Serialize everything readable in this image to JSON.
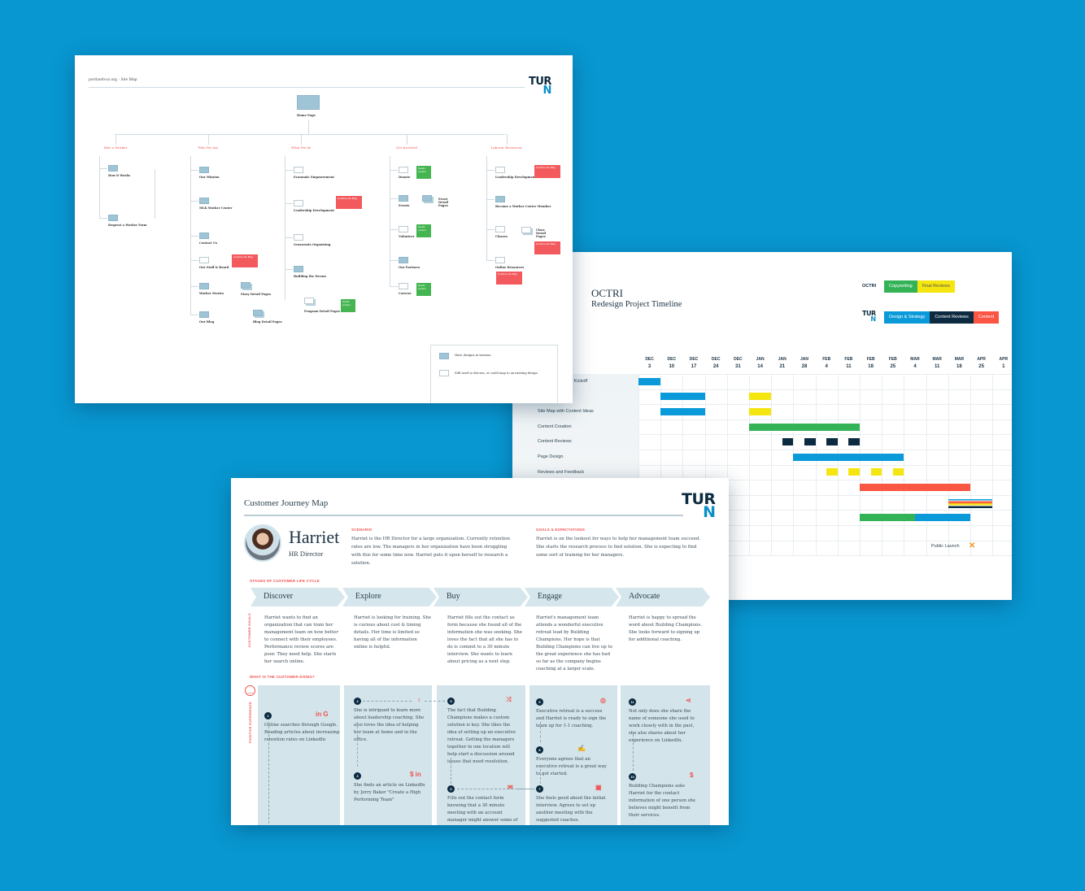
{
  "colors": {
    "background": "#0897d1",
    "blue": "#0a9ad9",
    "navy": "#0c2b40",
    "green": "#34b356",
    "yellow": "#f5e60f",
    "red": "#fb5544",
    "orange": "#f7941d"
  },
  "logo": {
    "top": "TUR",
    "bottom": "N"
  },
  "sitemap": {
    "breadcrumb": "portlandvoz.org  ·  Site Map",
    "home": "Home Page",
    "sections": [
      {
        "title": "Hire a Worker",
        "items": [
          "How it Works",
          "Request a Worker Form"
        ]
      },
      {
        "title": "Who We Are",
        "items": [
          "Our Mission",
          "MLK Worker Center",
          "Contact Us",
          "Our Staff & Board",
          "Worker Stories",
          "Our Blog"
        ]
      },
      {
        "title": "What We do",
        "items": [
          "Economic Empowerment",
          "Leadership Development",
          "Grassroots Organizing",
          "Building the Dream"
        ]
      },
      {
        "title": "Get Involved",
        "items": [
          "Donate",
          "Events",
          "Volunteer",
          "Our Partners",
          "Careers"
        ]
      },
      {
        "title": "Laborer Resources",
        "items": [
          "Leadership Development",
          "Become a Worker Center Member",
          "Classes",
          "Online Resources"
        ]
      }
    ],
    "detail_pages": [
      "Story Detail Pages",
      "Blog Detail Pages",
      "Program Detail Pages",
      "Event Detail Pages",
      "Class Detail Pages"
    ],
    "red_note": "Could be the Blog",
    "green_note": "Needs content",
    "legend": [
      "Have designs in Invision",
      "Still need to discuss, or could map to an existing design"
    ]
  },
  "timeline": {
    "title": "OCTRI",
    "subtitle": "Redesign Project Timeline",
    "legend_octri_label": "OCTRI",
    "legend_octri": [
      {
        "label": "Copywriting",
        "color": "#34b356"
      },
      {
        "label": "Final Reviews",
        "color": "#f5e60f"
      }
    ],
    "legend_turn": [
      {
        "label": "Design & Strategy",
        "color": "#0a9ad9"
      },
      {
        "label": "Content Reviews",
        "color": "#0c2b40"
      },
      {
        "label": "Content",
        "color": "#fb5544"
      }
    ],
    "dates": [
      [
        "DEC",
        "3"
      ],
      [
        "DEC",
        "10"
      ],
      [
        "DEC",
        "17"
      ],
      [
        "DEC",
        "24"
      ],
      [
        "DEC",
        "31"
      ],
      [
        "JAN",
        "14"
      ],
      [
        "JAN",
        "21"
      ],
      [
        "JAN",
        "28"
      ],
      [
        "FEB",
        "4"
      ],
      [
        "FEB",
        "11"
      ],
      [
        "FEB",
        "18"
      ],
      [
        "FEB",
        "25"
      ],
      [
        "MAR",
        "4"
      ],
      [
        "MAR",
        "11"
      ],
      [
        "MAR",
        "18"
      ],
      [
        "APR",
        "25"
      ],
      [
        "APR",
        "1"
      ]
    ],
    "rows": [
      {
        "label": "s/ Kickoff",
        "tasks": [
          {
            "start": 0,
            "end": 1,
            "color": "#0a9ad9"
          }
        ]
      },
      {
        "label": "",
        "tasks": [
          {
            "start": 1,
            "end": 3,
            "color": "#0a9ad9"
          },
          {
            "start": 5,
            "end": 6,
            "color": "#f5e60f"
          }
        ]
      },
      {
        "label": "Site Map with Content Ideas",
        "tasks": [
          {
            "start": 1,
            "end": 3,
            "color": "#0a9ad9"
          },
          {
            "start": 5,
            "end": 6,
            "color": "#f5e60f"
          }
        ]
      },
      {
        "label": "Content Creation",
        "tasks": [
          {
            "start": 5,
            "end": 10,
            "color": "#34b356"
          }
        ]
      },
      {
        "label": "Content Reviews",
        "tasks": [
          {
            "start": 6.5,
            "end": 7,
            "color": "#0c2b40"
          },
          {
            "start": 7.5,
            "end": 8,
            "color": "#0c2b40"
          },
          {
            "start": 8.5,
            "end": 9,
            "color": "#0c2b40"
          },
          {
            "start": 9.5,
            "end": 10,
            "color": "#0c2b40"
          }
        ]
      },
      {
        "label": "Page Design",
        "tasks": [
          {
            "start": 7,
            "end": 12,
            "color": "#0a9ad9"
          }
        ]
      },
      {
        "label": "Reviews and Feedback",
        "tasks": [
          {
            "start": 8.5,
            "end": 9,
            "color": "#f5e60f"
          },
          {
            "start": 9.5,
            "end": 10,
            "color": "#f5e60f"
          },
          {
            "start": 10.5,
            "end": 11,
            "color": "#f5e60f"
          },
          {
            "start": 11.5,
            "end": 12,
            "color": "#f5e60f"
          }
        ]
      },
      {
        "label": "",
        "tasks": [
          {
            "start": 10,
            "end": 15,
            "color": "#fb5544"
          }
        ]
      },
      {
        "label": "",
        "tasks": [
          {
            "start": 14,
            "end": 16,
            "color": "stripes"
          }
        ]
      },
      {
        "label": "",
        "tasks": [
          {
            "start": 10,
            "end": 12.5,
            "color": "#34b356"
          },
          {
            "start": 12.5,
            "end": 15,
            "color": "#0a9ad9"
          }
        ]
      }
    ],
    "milestone": {
      "label": "Public Launch",
      "week": 15
    }
  },
  "journey": {
    "title": "Customer Journey Map",
    "persona": {
      "name": "Harriet",
      "role": "HR Director"
    },
    "scenario_label": "SCENARIO",
    "scenario": "Harriet is the HR Director for a large organization. Currently retention rates are low. The managers in her organization have been struggling with this for some time now. Harriet puts it upon herself to research a solution.",
    "goals_label": "GOALS & EXPECTATIONS",
    "goals": "Harriet is on the lookout for ways to help her management team succeed. She starts the research process to find solution. She is expecting to find some sort of training for her managers.",
    "stages_label": "STAGES OF CUSTOMER LIFE CYCLE",
    "stages": [
      "Discover",
      "Explore",
      "Buy",
      "Engage",
      "Advocate"
    ],
    "customer_goals_label": "CUSTOMER GOALS",
    "customer_goals": [
      "Harriet wants to find an organization that can train her management team on how better to connect with their employees. Performance review scores are poor. They need help. She starts her search online.",
      "Harriet is looking for training. She is curious about cost & timing details. Her time is limited so having all of the information online is helpful.",
      "Harriet fills out the contact us form because she found all of the information she was seeking. She loves the fact that all she has to do is commit to a 30 minute interview. She wants to learn about pricing as a next step.",
      "Harriet's management team attends a wonderful executive retreat lead by Building Champions. Her hope is that Building Champions can live up to the great experience she has had so far as the company begins coaching at a larger scale.",
      "Harriet is happy to spread the word about Building Champions. She looks forward to signing up for additional coaching."
    ],
    "doing_label": "WHAT IS THE CUSTOMER DOING?",
    "positive_label": "POSITIVE EXPERIENCE",
    "steps": [
      {
        "num": "1",
        "text": "Online searches through Google. Reading articles about increasing retention rates on LinkedIn",
        "icon": "in G"
      },
      {
        "num": "4",
        "text": "She is intrigued to learn more about leadership coaching. She also loves the idea of helping her team at home and in the office.",
        "icon": "♁"
      },
      {
        "num": "3",
        "text": "She finds an article on LinkedIn by Jerry Baker \"Create a High Performing Team\"",
        "icon": "$ in"
      },
      {
        "num": "5",
        "text": "The fact that Building Champions makes a custom solution is key. She likes the idea of setting up an executive retreat. Getting the managers together in one location will help start a discussion around issues that need resolution.",
        "icon": "⤨"
      },
      {
        "num": "6",
        "text": "Fills out the contact form knowing that a 30 minute meeting with an account manager might answer some of",
        "icon": "✉"
      },
      {
        "num": "9",
        "text": "Executive retreat is a success and Harriet is ready to sign the team up for 1-1 coaching.",
        "icon": "◎"
      },
      {
        "num": "8",
        "text": "Everyone agrees that an executive retreat is a great way to get started.",
        "icon": "✍"
      },
      {
        "num": "7",
        "text": "She feels good about the initial interview. Agrees to set up another meeting with the suggested coaches.",
        "icon": "▣"
      },
      {
        "num": "11",
        "text": "Not only does she share the name of someone she used to work closely with in the past, she also shares about her experience on LinkedIn.",
        "icon": "⋖"
      },
      {
        "num": "10",
        "text": "Building Champions asks Harriet for the contact information of one person she believes might benefit from their services.",
        "icon": "$"
      }
    ]
  }
}
